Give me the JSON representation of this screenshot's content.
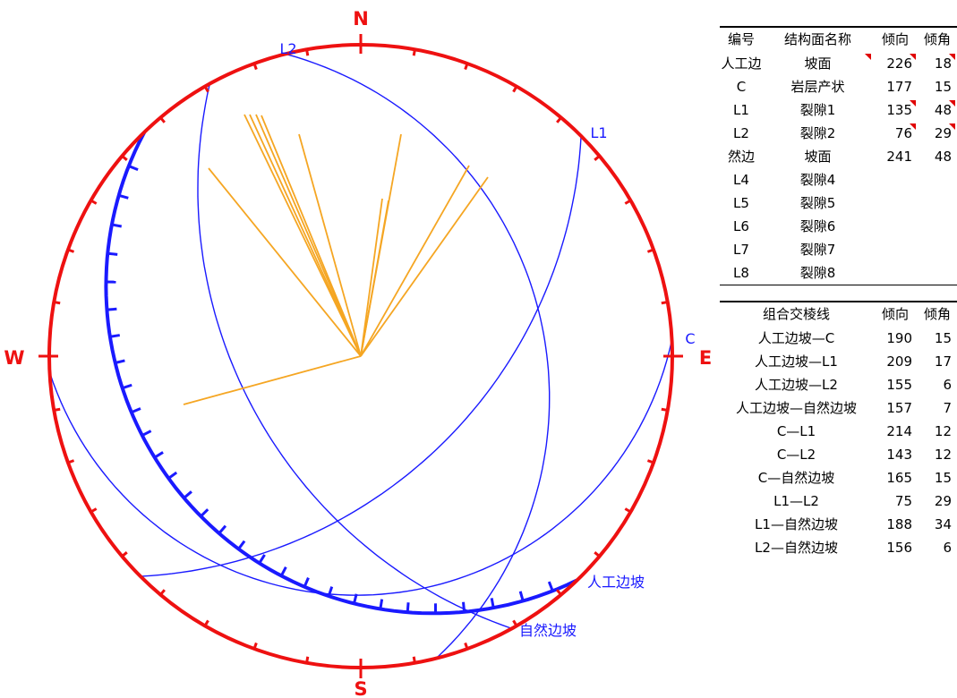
{
  "compass": {
    "north": "N",
    "south": "S",
    "east": "E",
    "west": "W"
  },
  "colors": {
    "net_circle": "#ee1111",
    "great_circle": "#1a1aff",
    "pole_line": "#f5a623",
    "label_text": "#1a1aff"
  },
  "planes": [
    {
      "id": "人工边坡",
      "label": "人工边坡",
      "dip_direction": 226,
      "dip": 18,
      "highlight": true
    },
    {
      "id": "C",
      "label": "C",
      "dip_direction": 177,
      "dip": 15,
      "highlight": false
    },
    {
      "id": "L1",
      "label": "L1",
      "dip_direction": 135,
      "dip": 48,
      "highlight": false
    },
    {
      "id": "L2",
      "label": "L2",
      "dip_direction": 76,
      "dip": 29,
      "highlight": false
    },
    {
      "id": "自然边坡",
      "label": "自然边坡",
      "dip_direction": 241,
      "dip": 48,
      "highlight": false
    }
  ],
  "planes_table": {
    "headers": [
      "编号",
      "结构面名称",
      "倾向",
      "倾角"
    ],
    "rows": [
      {
        "id": "人工边",
        "name": "坡面",
        "dip_direction": "226",
        "dip": "18",
        "marks": [
          true,
          true,
          true
        ]
      },
      {
        "id": "C",
        "name": "岩层产状",
        "dip_direction": "177",
        "dip": "15",
        "marks": [
          false,
          false,
          false
        ]
      },
      {
        "id": "L1",
        "name": "裂隙1",
        "dip_direction": "135",
        "dip": "48",
        "marks": [
          false,
          true,
          true
        ]
      },
      {
        "id": "L2",
        "name": "裂隙2",
        "dip_direction": "76",
        "dip": "29",
        "marks": [
          false,
          true,
          true
        ]
      },
      {
        "id": "然边",
        "name": "坡面",
        "dip_direction": "241",
        "dip": "48",
        "marks": [
          false,
          false,
          false
        ]
      },
      {
        "id": "L4",
        "name": "裂隙4",
        "dip_direction": "",
        "dip": "",
        "marks": [
          false,
          false,
          false
        ]
      },
      {
        "id": "L5",
        "name": "裂隙5",
        "dip_direction": "",
        "dip": "",
        "marks": [
          false,
          false,
          false
        ]
      },
      {
        "id": "L6",
        "name": "裂隙6",
        "dip_direction": "",
        "dip": "",
        "marks": [
          false,
          false,
          false
        ]
      },
      {
        "id": "L7",
        "name": "裂隙7",
        "dip_direction": "",
        "dip": "",
        "marks": [
          false,
          false,
          false
        ]
      },
      {
        "id": "L8",
        "name": "裂隙8",
        "dip_direction": "",
        "dip": "",
        "marks": [
          false,
          false,
          false
        ]
      }
    ]
  },
  "intersections_table": {
    "headers": [
      "组合交棱线",
      "倾向",
      "倾角"
    ],
    "rows": [
      {
        "name": "人工边坡—C",
        "dip_direction": "190",
        "dip": "15"
      },
      {
        "name": "人工边坡—L1",
        "dip_direction": "209",
        "dip": "17"
      },
      {
        "name": "人工边坡—L2",
        "dip_direction": "155",
        "dip": "6"
      },
      {
        "name": "人工边坡—自然边坡",
        "dip_direction": "157",
        "dip": "7"
      },
      {
        "name": "C—L1",
        "dip_direction": "214",
        "dip": "12"
      },
      {
        "name": "C—L2",
        "dip_direction": "143",
        "dip": "12"
      },
      {
        "name": "C—自然边坡",
        "dip_direction": "165",
        "dip": "15"
      },
      {
        "name": "L1—L2",
        "dip_direction": "75",
        "dip": "29"
      },
      {
        "name": "L1—自然边坡",
        "dip_direction": "188",
        "dip": "34"
      },
      {
        "name": "L2—自然边坡",
        "dip_direction": "156",
        "dip": "6"
      }
    ]
  }
}
